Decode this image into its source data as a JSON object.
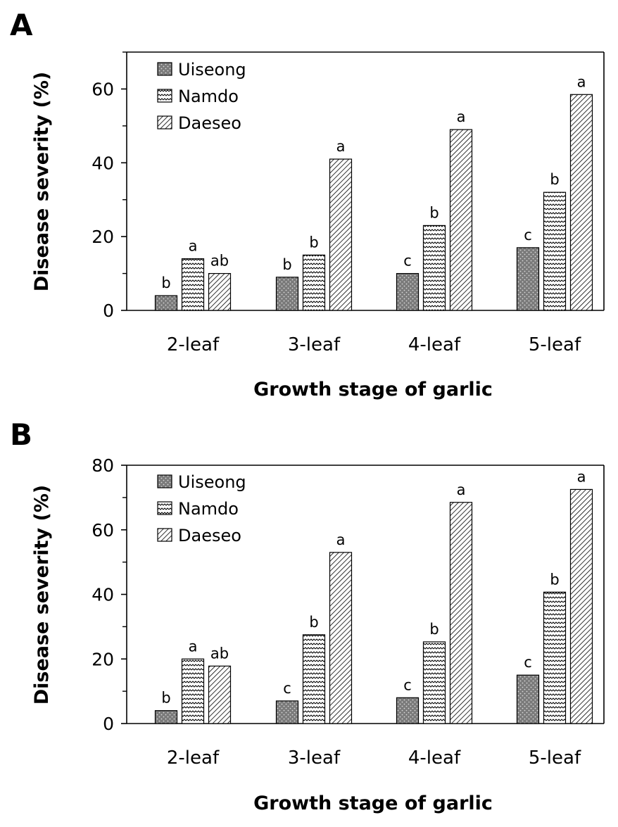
{
  "chart_data": [
    {
      "type": "bar",
      "panel_label": "A",
      "categories": [
        "2-leaf",
        "3-leaf",
        "4-leaf",
        "5-leaf"
      ],
      "series": [
        {
          "name": "Uiseong",
          "pattern": "dots",
          "values": [
            4,
            9,
            10,
            17
          ],
          "letters": [
            "b",
            "b",
            "c",
            "c"
          ]
        },
        {
          "name": "Namdo",
          "pattern": "zigzag",
          "values": [
            14,
            15,
            23,
            32
          ],
          "letters": [
            "a",
            "b",
            "b",
            "b"
          ]
        },
        {
          "name": "Daeseo",
          "pattern": "diagonal",
          "values": [
            10,
            41,
            49,
            58.5
          ],
          "letters": [
            "ab",
            "a",
            "a",
            "a"
          ]
        }
      ],
      "xlabel": "Growth stage of garlic",
      "ylabel": "Disease severity (%)",
      "ylim": [
        0,
        70
      ],
      "yticks": [
        0,
        20,
        40,
        60
      ],
      "minor_ticks": [
        10,
        30,
        50,
        70
      ],
      "legend": "top-left",
      "grid": false
    },
    {
      "type": "bar",
      "panel_label": "B",
      "categories": [
        "2-leaf",
        "3-leaf",
        "4-leaf",
        "5-leaf"
      ],
      "series": [
        {
          "name": "Uiseong",
          "pattern": "dots",
          "values": [
            4,
            7,
            8,
            15
          ],
          "letters": [
            "b",
            "c",
            "c",
            "c"
          ]
        },
        {
          "name": "Namdo",
          "pattern": "zigzag",
          "values": [
            20,
            27.5,
            25.3,
            40.7
          ],
          "letters": [
            "a",
            "b",
            "b",
            "b"
          ]
        },
        {
          "name": "Daeseo",
          "pattern": "diagonal",
          "values": [
            17.8,
            53,
            68.5,
            72.5
          ],
          "letters": [
            "ab",
            "a",
            "a",
            "a"
          ]
        }
      ],
      "xlabel": "Growth stage of garlic",
      "ylabel": "Disease severity (%)",
      "ylim": [
        0,
        80
      ],
      "yticks": [
        0,
        20,
        40,
        60,
        80
      ],
      "minor_ticks": [
        10,
        30,
        50,
        70
      ],
      "legend": "top-left",
      "grid": false
    }
  ],
  "colors": {
    "uiseong_fill": "#7a7a7a",
    "axis": "#000000",
    "background": "#ffffff"
  }
}
